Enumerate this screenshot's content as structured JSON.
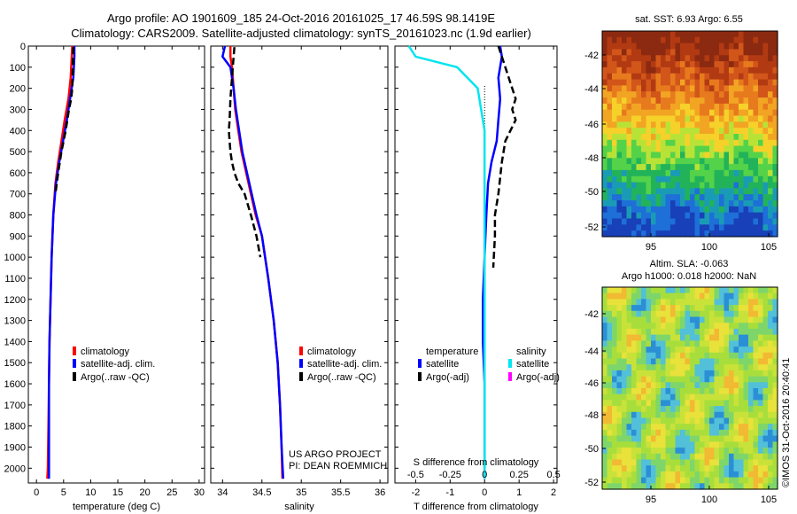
{
  "title_line1": "Argo profile: AO 1901609_185 24-Oct-2016 20161025_17 46.59S 98.1419E",
  "title_line2": "Climatology: CARS2009. Satellite-adjusted climatology: synTS_20161023.nc (1.9d earlier)",
  "map1_title": "sat. SST: 6.93 Argo: 6.55",
  "map2_title1": "Altim. SLA: -0.063",
  "map2_title2": "Argo h1000: 0.018 h2000: NaN",
  "credit1": "US ARGO PROJECT",
  "credit2": "PI: DEAN ROEMMICH",
  "vertical_note": "©IMOS 31-Oct-2016 20:40:41",
  "colors": {
    "climatology": "#ff0000",
    "satellite": "#0000ff",
    "argo": "#000000",
    "sal_sat": "#00e5ee",
    "sal_argo": "#ff00ff"
  },
  "chart_data": [
    {
      "type": "line",
      "xlabel": "temperature (deg C)",
      "ylabel": "",
      "xlim": [
        -1.5,
        31
      ],
      "ylim": [
        2070,
        0
      ],
      "xticks": [
        0,
        5,
        10,
        15,
        20,
        25,
        30
      ],
      "yticks": [
        0,
        100,
        200,
        300,
        400,
        500,
        600,
        700,
        800,
        900,
        1000,
        1100,
        1200,
        1300,
        1400,
        1500,
        1600,
        1700,
        1800,
        1900,
        2000
      ],
      "legend": [
        "climatology",
        "satellite-adj. clim.",
        "Argo(..raw -QC)"
      ],
      "series": [
        {
          "name": "climatology",
          "x": [
            6.6,
            6.5,
            6.3,
            5.9,
            5.2,
            4.6,
            4.0,
            3.5,
            3.1,
            2.8,
            2.6,
            2.4,
            2.3,
            2.2,
            2.1,
            2.0
          ],
          "y": [
            0,
            50,
            150,
            250,
            350,
            450,
            550,
            650,
            800,
            1000,
            1200,
            1400,
            1600,
            1800,
            2000,
            2050
          ]
        },
        {
          "name": "satellite-adj. clim.",
          "x": [
            7.0,
            7.0,
            6.8,
            6.2,
            5.6,
            4.9,
            4.2,
            3.6,
            3.1,
            2.8,
            2.6,
            2.4,
            2.3,
            2.3,
            2.3,
            2.3
          ],
          "y": [
            0,
            50,
            150,
            250,
            350,
            450,
            550,
            650,
            800,
            1000,
            1200,
            1400,
            1600,
            1800,
            2000,
            2050
          ]
        },
        {
          "name": "Argo(..raw -QC)",
          "x": [
            6.8,
            6.7,
            6.6,
            6.4,
            6.0,
            5.4,
            4.6,
            4.0,
            3.5
          ],
          "y": [
            5,
            100,
            200,
            250,
            300,
            400,
            500,
            600,
            700
          ]
        }
      ]
    },
    {
      "type": "line",
      "xlabel": "salinity",
      "ylabel": "",
      "xlim": [
        33.85,
        36.1
      ],
      "ylim": [
        2070,
        0
      ],
      "xticks": [
        34,
        34.5,
        35,
        35.5,
        36
      ],
      "legend": [
        "climatology",
        "satellite-adj. clim.",
        "Argo(..raw -QC)"
      ],
      "series": [
        {
          "name": "climatology",
          "x": [
            34.1,
            34.1,
            34.12,
            34.14,
            34.16,
            34.2,
            34.24,
            34.3,
            34.36,
            34.42,
            34.5,
            34.58,
            34.65,
            34.7,
            34.73,
            34.75,
            34.76
          ],
          "y": [
            0,
            50,
            100,
            200,
            300,
            400,
            500,
            600,
            700,
            800,
            900,
            1100,
            1300,
            1500,
            1700,
            1900,
            2050
          ]
        },
        {
          "name": "satellite-adj. clim.",
          "x": [
            34.03,
            34.0,
            34.1,
            34.14,
            34.17,
            34.21,
            34.25,
            34.31,
            34.37,
            34.43,
            34.5,
            34.58,
            34.65,
            34.7,
            34.73,
            34.75,
            34.77
          ],
          "y": [
            0,
            50,
            100,
            200,
            300,
            400,
            500,
            600,
            700,
            800,
            900,
            1100,
            1300,
            1500,
            1700,
            1900,
            2050
          ]
        },
        {
          "name": "Argo(..raw -QC)",
          "x": [
            34.15,
            34.14,
            34.12,
            34.1,
            34.09,
            34.08,
            34.1,
            34.12,
            34.15,
            34.2,
            34.28,
            34.36,
            34.43,
            34.48
          ],
          "y": [
            5,
            50,
            150,
            250,
            350,
            400,
            500,
            550,
            600,
            650,
            700,
            800,
            900,
            1000
          ]
        }
      ]
    },
    {
      "type": "line",
      "xlabel": "T difference from climatology",
      "x2label": "S difference from climatology",
      "xlim": [
        -2.6,
        2.1
      ],
      "ylim": [
        2070,
        0
      ],
      "xticks": [
        -2,
        -1,
        0,
        1,
        2
      ],
      "x2ticks": [
        -0.5,
        -0.25,
        0,
        0.25,
        0.5
      ],
      "legend": [
        "temperature",
        "satellite",
        "Argo(-adj)",
        "salinity",
        "satellite",
        "Argo(-adj)"
      ],
      "series": [
        {
          "name": "satellite",
          "x": [
            0.45,
            0.5,
            0.4,
            0.45,
            0.4,
            0.35,
            0.2,
            0.1,
            0.05,
            0.0,
            -0.05,
            -0.05,
            -0.05,
            0.0,
            0.0,
            0.0,
            0.0
          ],
          "y": [
            0,
            50,
            150,
            250,
            350,
            450,
            550,
            650,
            800,
            1000,
            1200,
            1300,
            1400,
            1600,
            1800,
            2000,
            2050
          ]
        },
        {
          "name": "Argo(-adj)",
          "x": [
            0.4,
            0.6,
            0.8,
            0.9,
            0.8,
            0.9,
            0.6,
            0.5,
            0.4,
            0.3,
            0.3,
            0.25
          ],
          "y": [
            0,
            100,
            200,
            250,
            300,
            350,
            450,
            550,
            700,
            800,
            900,
            1050
          ]
        },
        {
          "name": "satellite",
          "x": [
            -0.55,
            -0.5,
            -0.2,
            -0.05,
            0.0,
            0.0,
            0.0,
            0.0,
            0.0,
            0.0
          ],
          "y": [
            0,
            50,
            100,
            200,
            400,
            800,
            1200,
            1600,
            2000,
            2050
          ]
        }
      ]
    }
  ]
}
